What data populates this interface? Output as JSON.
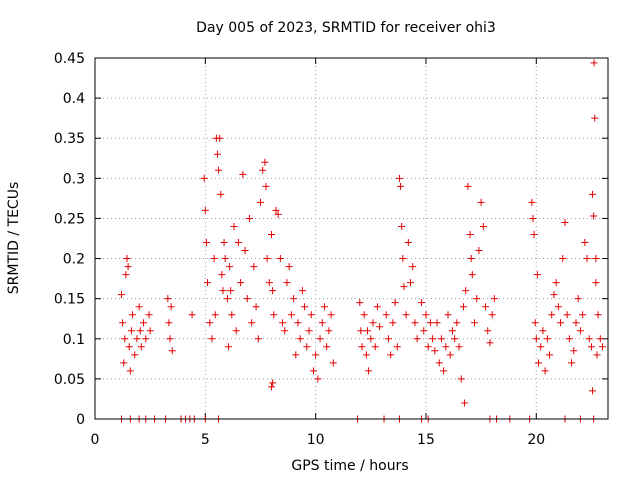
{
  "chart_data": {
    "type": "scatter",
    "title": "Day 005 of 2023, SRMTID for receiver ohi3",
    "xlabel": "GPS time / hours",
    "ylabel": "SRMTID / TECUs",
    "xlim": [
      0,
      23.25
    ],
    "ylim": [
      0,
      0.45
    ],
    "xticks": [
      0,
      5,
      10,
      15,
      20
    ],
    "yticks": [
      0,
      0.05,
      0.1,
      0.15,
      0.2,
      0.25,
      0.3,
      0.35,
      0.4,
      0.45
    ],
    "xtick_labels": [
      "0",
      "5",
      "10",
      "15",
      "20"
    ],
    "ytick_labels": [
      "0",
      "0.05",
      "0.1",
      "0.15",
      "0.2",
      "0.25",
      "0.3",
      "0.35",
      "0.4",
      "0.45"
    ],
    "grid": true,
    "marker": "+",
    "color": "#e00000",
    "series": [
      {
        "name": "SRMTID",
        "points": [
          [
            1.2,
            0.155
          ],
          [
            1.25,
            0.12
          ],
          [
            1.3,
            0.07
          ],
          [
            1.35,
            0.1
          ],
          [
            1.4,
            0.18
          ],
          [
            1.45,
            0.2
          ],
          [
            1.5,
            0.19
          ],
          [
            1.55,
            0.09
          ],
          [
            1.6,
            0.06
          ],
          [
            1.65,
            0.11
          ],
          [
            1.7,
            0.13
          ],
          [
            1.8,
            0.08
          ],
          [
            1.9,
            0.1
          ],
          [
            2.0,
            0.14
          ],
          [
            2.05,
            0.11
          ],
          [
            2.1,
            0.09
          ],
          [
            2.2,
            0.12
          ],
          [
            2.3,
            0.1
          ],
          [
            2.45,
            0.13
          ],
          [
            2.5,
            0.11
          ],
          [
            3.3,
            0.15
          ],
          [
            3.35,
            0.12
          ],
          [
            3.4,
            0.1
          ],
          [
            3.45,
            0.14
          ],
          [
            3.5,
            0.085
          ],
          [
            4.4,
            0.13
          ],
          [
            4.95,
            0.3
          ],
          [
            5.0,
            0.26
          ],
          [
            5.05,
            0.22
          ],
          [
            5.1,
            0.17
          ],
          [
            5.2,
            0.12
          ],
          [
            5.3,
            0.1
          ],
          [
            5.4,
            0.2
          ],
          [
            5.45,
            0.13
          ],
          [
            5.5,
            0.35
          ],
          [
            5.55,
            0.33
          ],
          [
            5.6,
            0.31
          ],
          [
            5.65,
            0.35
          ],
          [
            5.7,
            0.28
          ],
          [
            5.75,
            0.18
          ],
          [
            5.8,
            0.16
          ],
          [
            5.85,
            0.22
          ],
          [
            5.9,
            0.2
          ],
          [
            6.0,
            0.15
          ],
          [
            6.1,
            0.19
          ],
          [
            6.2,
            0.13
          ],
          [
            6.3,
            0.24
          ],
          [
            6.4,
            0.11
          ],
          [
            6.5,
            0.22
          ],
          [
            6.6,
            0.17
          ],
          [
            6.7,
            0.305
          ],
          [
            6.8,
            0.21
          ],
          [
            6.9,
            0.15
          ],
          [
            7.0,
            0.25
          ],
          [
            7.1,
            0.12
          ],
          [
            7.2,
            0.19
          ],
          [
            7.3,
            0.14
          ],
          [
            7.4,
            0.1
          ],
          [
            7.5,
            0.27
          ],
          [
            7.6,
            0.31
          ],
          [
            7.7,
            0.32
          ],
          [
            7.75,
            0.29
          ],
          [
            7.8,
            0.2
          ],
          [
            7.9,
            0.17
          ],
          [
            8.0,
            0.23
          ],
          [
            8.05,
            0.16
          ],
          [
            8.1,
            0.13
          ],
          [
            8.2,
            0.26
          ],
          [
            8.3,
            0.255
          ],
          [
            8.4,
            0.2
          ],
          [
            8.5,
            0.12
          ],
          [
            8.6,
            0.11
          ],
          [
            8.7,
            0.17
          ],
          [
            8.8,
            0.19
          ],
          [
            8.9,
            0.13
          ],
          [
            9.0,
            0.15
          ],
          [
            9.1,
            0.08
          ],
          [
            9.2,
            0.12
          ],
          [
            9.3,
            0.1
          ],
          [
            9.4,
            0.16
          ],
          [
            9.5,
            0.14
          ],
          [
            9.6,
            0.09
          ],
          [
            9.7,
            0.11
          ],
          [
            9.8,
            0.13
          ],
          [
            9.9,
            0.06
          ],
          [
            10.0,
            0.08
          ],
          [
            10.1,
            0.05
          ],
          [
            10.2,
            0.1
          ],
          [
            10.3,
            0.12
          ],
          [
            10.4,
            0.14
          ],
          [
            10.5,
            0.09
          ],
          [
            10.6,
            0.11
          ],
          [
            10.7,
            0.13
          ],
          [
            10.8,
            0.07
          ],
          [
            8.05,
            0.045
          ],
          [
            8.0,
            0.04
          ],
          [
            6.05,
            0.09
          ],
          [
            6.15,
            0.16
          ],
          [
            12.0,
            0.145
          ],
          [
            12.05,
            0.11
          ],
          [
            12.1,
            0.09
          ],
          [
            12.2,
            0.13
          ],
          [
            12.3,
            0.08
          ],
          [
            12.35,
            0.11
          ],
          [
            12.4,
            0.06
          ],
          [
            12.5,
            0.1
          ],
          [
            12.6,
            0.12
          ],
          [
            12.7,
            0.09
          ],
          [
            12.8,
            0.14
          ],
          [
            12.9,
            0.115
          ],
          [
            13.2,
            0.13
          ],
          [
            13.3,
            0.1
          ],
          [
            13.4,
            0.08
          ],
          [
            13.5,
            0.12
          ],
          [
            13.6,
            0.145
          ],
          [
            13.7,
            0.09
          ],
          [
            13.8,
            0.3
          ],
          [
            13.85,
            0.29
          ],
          [
            13.9,
            0.24
          ],
          [
            13.95,
            0.2
          ],
          [
            14.0,
            0.165
          ],
          [
            14.1,
            0.13
          ],
          [
            14.2,
            0.22
          ],
          [
            14.3,
            0.17
          ],
          [
            14.4,
            0.19
          ],
          [
            14.5,
            0.12
          ],
          [
            14.6,
            0.1
          ],
          [
            14.8,
            0.145
          ],
          [
            14.9,
            0.11
          ],
          [
            15.0,
            0.13
          ],
          [
            15.1,
            0.09
          ],
          [
            15.2,
            0.12
          ],
          [
            15.3,
            0.1
          ],
          [
            15.4,
            0.085
          ],
          [
            15.5,
            0.12
          ],
          [
            15.6,
            0.07
          ],
          [
            15.7,
            0.1
          ],
          [
            15.8,
            0.06
          ],
          [
            15.9,
            0.09
          ],
          [
            16.0,
            0.13
          ],
          [
            16.1,
            0.08
          ],
          [
            16.2,
            0.11
          ],
          [
            16.3,
            0.1
          ],
          [
            16.4,
            0.12
          ],
          [
            16.5,
            0.09
          ],
          [
            16.6,
            0.05
          ],
          [
            16.7,
            0.14
          ],
          [
            16.75,
            0.02
          ],
          [
            16.8,
            0.16
          ],
          [
            16.9,
            0.29
          ],
          [
            17.0,
            0.23
          ],
          [
            17.05,
            0.2
          ],
          [
            17.1,
            0.18
          ],
          [
            17.2,
            0.12
          ],
          [
            17.3,
            0.15
          ],
          [
            17.4,
            0.21
          ],
          [
            17.5,
            0.27
          ],
          [
            17.6,
            0.24
          ],
          [
            17.7,
            0.14
          ],
          [
            17.8,
            0.11
          ],
          [
            17.9,
            0.095
          ],
          [
            18.0,
            0.13
          ],
          [
            18.1,
            0.15
          ],
          [
            19.8,
            0.27
          ],
          [
            19.85,
            0.25
          ],
          [
            19.9,
            0.23
          ],
          [
            19.95,
            0.12
          ],
          [
            20.0,
            0.1
          ],
          [
            20.05,
            0.18
          ],
          [
            20.1,
            0.07
          ],
          [
            20.2,
            0.09
          ],
          [
            20.3,
            0.11
          ],
          [
            20.4,
            0.06
          ],
          [
            20.5,
            0.1
          ],
          [
            20.6,
            0.08
          ],
          [
            20.7,
            0.13
          ],
          [
            20.8,
            0.155
          ],
          [
            20.9,
            0.17
          ],
          [
            21.0,
            0.14
          ],
          [
            21.1,
            0.12
          ],
          [
            21.2,
            0.2
          ],
          [
            21.3,
            0.245
          ],
          [
            21.4,
            0.13
          ],
          [
            21.5,
            0.1
          ],
          [
            21.6,
            0.07
          ],
          [
            21.7,
            0.085
          ],
          [
            21.8,
            0.12
          ],
          [
            21.9,
            0.15
          ],
          [
            22.0,
            0.11
          ],
          [
            22.1,
            0.13
          ],
          [
            22.2,
            0.22
          ],
          [
            22.3,
            0.2
          ],
          [
            22.4,
            0.1
          ],
          [
            22.5,
            0.09
          ],
          [
            22.55,
            0.28
          ],
          [
            22.6,
            0.253
          ],
          [
            22.62,
            0.444
          ],
          [
            22.65,
            0.375
          ],
          [
            22.7,
            0.2
          ],
          [
            22.8,
            0.13
          ],
          [
            22.9,
            0.1
          ],
          [
            23.0,
            0.09
          ],
          [
            22.55,
            0.035
          ],
          [
            22.7,
            0.17
          ],
          [
            22.75,
            0.08
          ],
          [
            1.2,
            0.0
          ],
          [
            1.6,
            0.0
          ],
          [
            2.0,
            0.0
          ],
          [
            2.3,
            0.0
          ],
          [
            2.7,
            0.0
          ],
          [
            3.2,
            0.0
          ],
          [
            3.9,
            0.0
          ],
          [
            4.1,
            0.0
          ],
          [
            4.3,
            0.0
          ],
          [
            4.5,
            0.0
          ],
          [
            5.0,
            0.0
          ],
          [
            5.6,
            0.0
          ],
          [
            11.9,
            0.0
          ],
          [
            13.1,
            0.0
          ],
          [
            13.8,
            0.0
          ],
          [
            14.8,
            0.0
          ],
          [
            15.1,
            0.0
          ],
          [
            17.9,
            0.0
          ],
          [
            18.2,
            0.0
          ],
          [
            18.8,
            0.0
          ],
          [
            19.7,
            0.0
          ],
          [
            21.3,
            0.0
          ],
          [
            22.0,
            0.0
          ],
          [
            22.6,
            0.0
          ]
        ]
      }
    ]
  }
}
